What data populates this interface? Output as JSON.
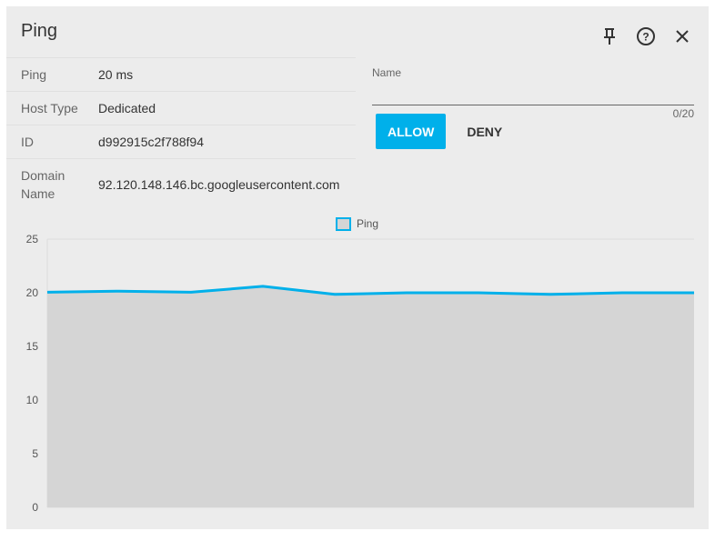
{
  "header": {
    "title": "Ping",
    "icons": [
      "pin-icon",
      "help-icon",
      "close-icon"
    ]
  },
  "details": [
    {
      "key": "Ping",
      "value": "20 ms"
    },
    {
      "key": "Host Type",
      "value": "Dedicated"
    },
    {
      "key": "ID",
      "value": "d992915c2f788f94"
    },
    {
      "key": "Domain Name",
      "value": "92.120.148.146.bc.googleusercontent.com"
    }
  ],
  "form": {
    "name_label": "Name",
    "name_value": "",
    "counter": "0/20",
    "allow_label": "ALLOW",
    "deny_label": "DENY"
  },
  "colors": {
    "accent": "#00b0ea",
    "fill": "#d5d5d5"
  },
  "chart_data": {
    "type": "area",
    "legend": [
      "Ping"
    ],
    "legend_position": "top",
    "ylim": [
      0,
      25
    ],
    "yticks": [
      "0",
      "5",
      "10",
      "15",
      "20",
      "25"
    ],
    "grid": true,
    "series": [
      {
        "name": "Ping",
        "values": [
          20.05,
          20.15,
          20.05,
          20.6,
          19.85,
          20.0,
          20.0,
          19.85,
          20.0,
          20.0
        ]
      }
    ]
  }
}
